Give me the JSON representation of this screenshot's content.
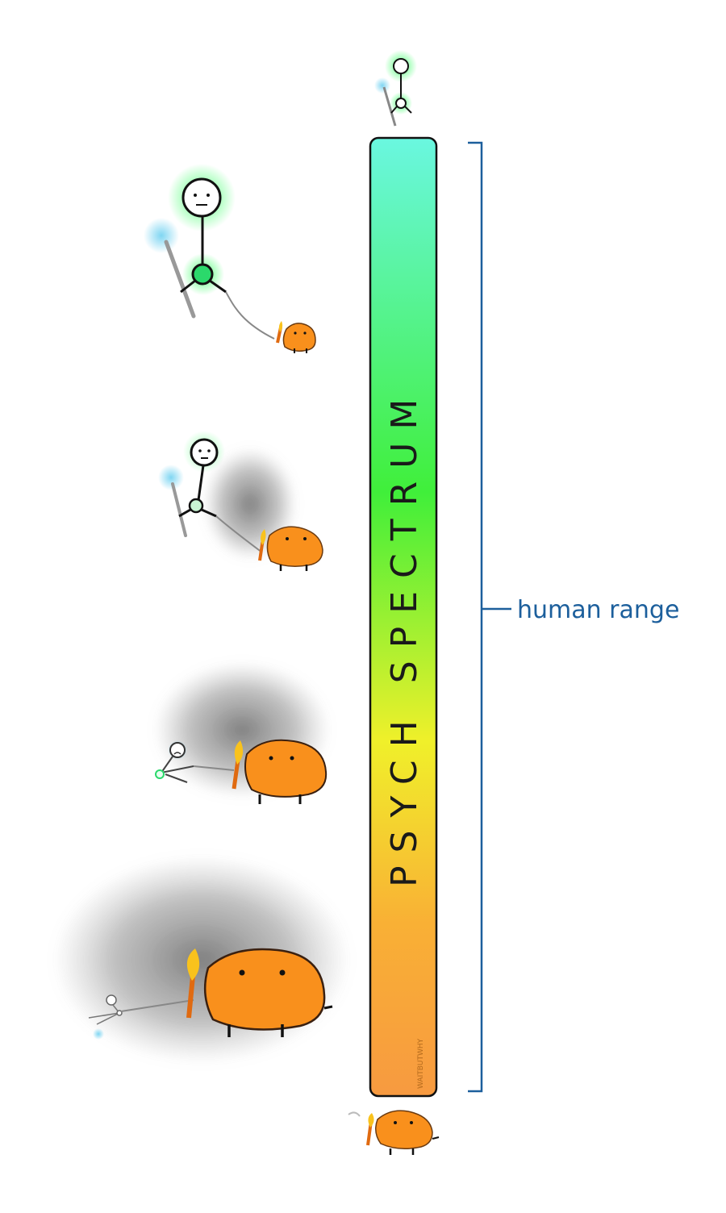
{
  "spectrum": {
    "title": "PSYCH SPECTRUM",
    "colors": [
      "#6af7e0",
      "#40ef3a",
      "#f0f02a",
      "#f9b035",
      "#f79a40"
    ]
  },
  "range": {
    "label": "human range",
    "color": "#1c5f9c"
  },
  "watermark": "WAITBUTWHY",
  "figures": {
    "human_color": "#2bd96b",
    "staff_color": "#7fd6f2",
    "monster_color": "#f9901c",
    "smoke_color": "#6a6a6a",
    "icons": [
      "stick-figure-icon",
      "wizard-staff-icon",
      "orange-monster-icon",
      "torch-icon",
      "smoke-cloud-icon"
    ]
  }
}
